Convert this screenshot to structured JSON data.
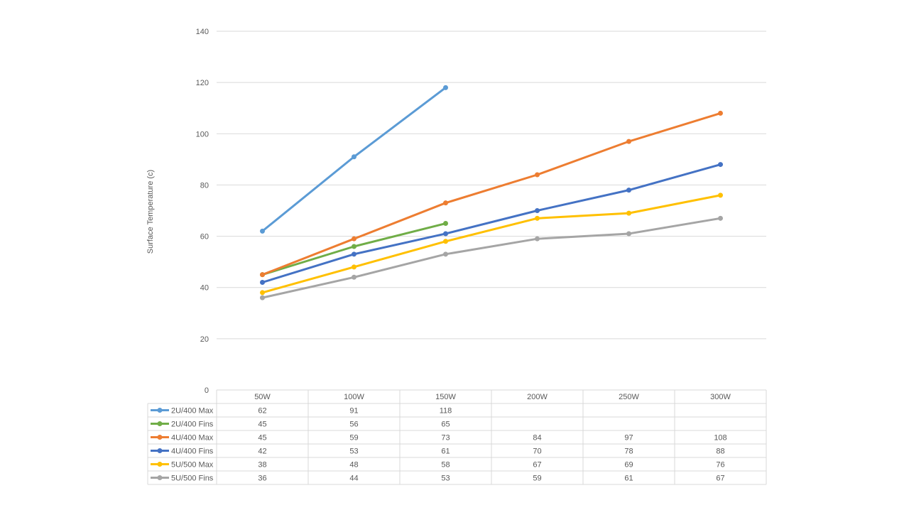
{
  "chart_data": {
    "type": "line",
    "title": "",
    "xlabel": "",
    "ylabel": "Surface Temperature (c)",
    "ylim": [
      0,
      140
    ],
    "yticks": [
      0,
      20,
      40,
      60,
      80,
      100,
      120,
      140
    ],
    "grid": true,
    "legend": "data-table",
    "categories": [
      "50W",
      "100W",
      "150W",
      "200W",
      "250W",
      "300W"
    ],
    "series": [
      {
        "name": "2U/400 Max",
        "color": "#5B9BD5",
        "values": [
          62,
          91,
          118,
          null,
          null,
          null
        ]
      },
      {
        "name": "2U/400 Fins",
        "color": "#70AD47",
        "values": [
          45,
          56,
          65,
          null,
          null,
          null
        ]
      },
      {
        "name": "4U/400 Max",
        "color": "#ED7D31",
        "values": [
          45,
          59,
          73,
          84,
          97,
          108
        ]
      },
      {
        "name": "4U/400 Fins",
        "color": "#4472C4",
        "values": [
          42,
          53,
          61,
          70,
          78,
          88
        ]
      },
      {
        "name": "5U/500 Max",
        "color": "#FFC000",
        "values": [
          38,
          48,
          58,
          67,
          69,
          76
        ]
      },
      {
        "name": "5U/500 Fins",
        "color": "#A5A5A5",
        "values": [
          36,
          44,
          53,
          59,
          61,
          67
        ]
      }
    ]
  }
}
